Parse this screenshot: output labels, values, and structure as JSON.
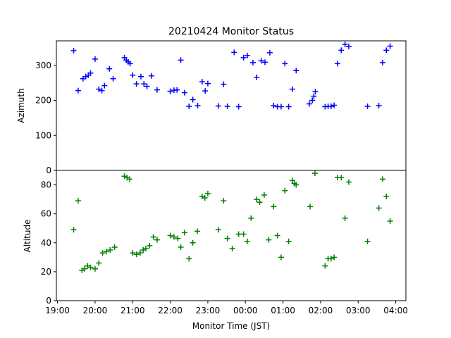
{
  "chart_data": {
    "type": "scatter",
    "title": "20210424 Monitor Status",
    "xlabel": "Monitor Time (JST)",
    "x_ticks": [
      "19:00",
      "20:00",
      "21:00",
      "22:00",
      "23:00",
      "00:00",
      "01:00",
      "02:00",
      "03:00",
      "04:00"
    ],
    "x_range_hours": [
      18.97,
      28.27
    ],
    "x_unit": "hours after 00:00 (values >= 24 are next day)",
    "marker": "plus",
    "panels": [
      {
        "ylabel": "Azimuth",
        "ylim": [
          0,
          370
        ],
        "y_ticks": [
          0,
          100,
          200,
          300
        ],
        "color": "#0000ff",
        "series_points": [
          [
            19.43,
            342
          ],
          [
            19.55,
            228
          ],
          [
            19.68,
            262
          ],
          [
            19.75,
            268
          ],
          [
            19.82,
            272
          ],
          [
            19.88,
            278
          ],
          [
            20.0,
            318
          ],
          [
            20.1,
            232
          ],
          [
            20.18,
            228
          ],
          [
            20.25,
            242
          ],
          [
            20.38,
            290
          ],
          [
            20.48,
            262
          ],
          [
            20.78,
            322
          ],
          [
            20.83,
            315
          ],
          [
            20.88,
            310
          ],
          [
            20.93,
            305
          ],
          [
            21.0,
            272
          ],
          [
            21.1,
            247
          ],
          [
            21.22,
            268
          ],
          [
            21.3,
            247
          ],
          [
            21.38,
            240
          ],
          [
            21.5,
            270
          ],
          [
            21.65,
            230
          ],
          [
            22.0,
            226
          ],
          [
            22.1,
            229
          ],
          [
            22.18,
            230
          ],
          [
            22.28,
            315
          ],
          [
            22.38,
            222
          ],
          [
            22.5,
            183
          ],
          [
            22.6,
            202
          ],
          [
            22.73,
            185
          ],
          [
            22.85,
            253
          ],
          [
            22.93,
            227
          ],
          [
            23.0,
            248
          ],
          [
            23.28,
            184
          ],
          [
            23.42,
            246
          ],
          [
            23.52,
            183
          ],
          [
            23.7,
            337
          ],
          [
            23.82,
            182
          ],
          [
            23.95,
            322
          ],
          [
            24.05,
            328
          ],
          [
            24.2,
            308
          ],
          [
            24.3,
            266
          ],
          [
            24.42,
            313
          ],
          [
            24.52,
            309
          ],
          [
            24.65,
            336
          ],
          [
            24.75,
            185
          ],
          [
            24.85,
            182
          ],
          [
            24.95,
            182
          ],
          [
            25.05,
            305
          ],
          [
            25.15,
            182
          ],
          [
            25.25,
            232
          ],
          [
            25.35,
            285
          ],
          [
            25.7,
            190
          ],
          [
            25.78,
            200
          ],
          [
            25.82,
            212
          ],
          [
            25.86,
            225
          ],
          [
            26.12,
            182
          ],
          [
            26.2,
            183
          ],
          [
            26.28,
            183
          ],
          [
            26.36,
            186
          ],
          [
            26.45,
            305
          ],
          [
            26.55,
            343
          ],
          [
            26.65,
            360
          ],
          [
            26.75,
            354
          ],
          [
            27.25,
            183
          ],
          [
            27.55,
            185
          ],
          [
            27.65,
            308
          ],
          [
            27.75,
            343
          ],
          [
            27.85,
            355
          ]
        ]
      },
      {
        "ylabel": "Altitude",
        "ylim": [
          0,
          90
        ],
        "y_ticks": [
          0,
          20,
          40,
          60,
          80
        ],
        "color": "#008000",
        "series_points": [
          [
            19.43,
            49
          ],
          [
            19.55,
            69
          ],
          [
            19.65,
            21
          ],
          [
            19.72,
            22
          ],
          [
            19.8,
            24
          ],
          [
            19.88,
            23
          ],
          [
            20.0,
            22
          ],
          [
            20.1,
            26
          ],
          [
            20.2,
            33
          ],
          [
            20.3,
            34
          ],
          [
            20.4,
            35
          ],
          [
            20.52,
            37
          ],
          [
            20.78,
            86
          ],
          [
            20.85,
            85
          ],
          [
            20.92,
            84
          ],
          [
            21.0,
            33
          ],
          [
            21.1,
            32
          ],
          [
            21.2,
            33
          ],
          [
            21.28,
            35
          ],
          [
            21.35,
            36
          ],
          [
            21.45,
            38
          ],
          [
            21.55,
            44
          ],
          [
            21.65,
            42
          ],
          [
            22.0,
            45
          ],
          [
            22.1,
            44
          ],
          [
            22.2,
            43
          ],
          [
            22.28,
            37
          ],
          [
            22.38,
            47
          ],
          [
            22.5,
            29
          ],
          [
            22.6,
            40
          ],
          [
            22.72,
            48
          ],
          [
            22.85,
            72
          ],
          [
            22.92,
            71
          ],
          [
            23.0,
            74
          ],
          [
            23.28,
            49
          ],
          [
            23.42,
            69
          ],
          [
            23.52,
            43
          ],
          [
            23.65,
            36
          ],
          [
            23.82,
            46
          ],
          [
            23.95,
            46
          ],
          [
            24.05,
            41
          ],
          [
            24.15,
            57
          ],
          [
            24.3,
            70
          ],
          [
            24.38,
            68
          ],
          [
            24.5,
            73
          ],
          [
            24.62,
            42
          ],
          [
            24.75,
            65
          ],
          [
            24.85,
            45
          ],
          [
            24.95,
            30
          ],
          [
            25.05,
            76
          ],
          [
            25.15,
            41
          ],
          [
            25.25,
            83
          ],
          [
            25.3,
            81
          ],
          [
            25.35,
            80
          ],
          [
            25.72,
            65
          ],
          [
            25.85,
            88
          ],
          [
            26.12,
            24
          ],
          [
            26.2,
            29
          ],
          [
            26.28,
            29
          ],
          [
            26.36,
            30
          ],
          [
            26.45,
            85
          ],
          [
            26.55,
            85
          ],
          [
            26.65,
            57
          ],
          [
            26.75,
            82
          ],
          [
            27.25,
            41
          ],
          [
            27.55,
            64
          ],
          [
            27.65,
            84
          ],
          [
            27.75,
            72
          ],
          [
            27.85,
            55
          ]
        ]
      }
    ]
  }
}
